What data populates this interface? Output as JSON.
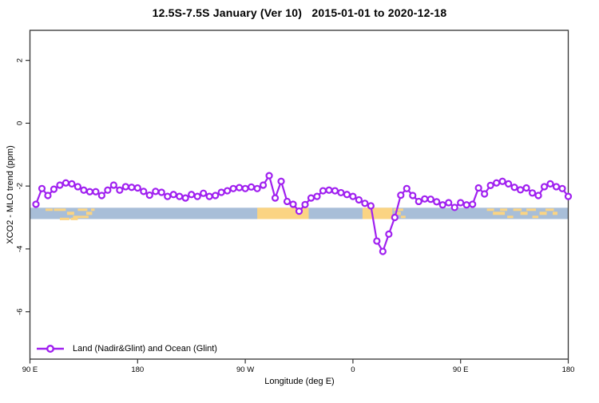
{
  "header": {
    "title": "12.5S-7.5S January (Ver 10)   2015-01-01 to 2020-12-18"
  },
  "axes": {
    "x": {
      "label": "Longitude (deg E)",
      "ticks": [
        {
          "deg": 90,
          "label": "90 E"
        },
        {
          "deg": 180,
          "label": "180"
        },
        {
          "deg": 270,
          "label": "90 W"
        },
        {
          "deg": 360,
          "label": "0"
        },
        {
          "deg": 450,
          "label": "90 E"
        },
        {
          "deg": 540,
          "label": "180"
        }
      ],
      "range_deg": [
        90,
        540
      ]
    },
    "y": {
      "label": "XCO2 - MLO trend (ppm)",
      "ticks": [
        2,
        0,
        -2,
        -4,
        -6
      ],
      "range_ppm": [
        -7.5,
        2.9
      ]
    }
  },
  "legend": {
    "label": "Land (Nadir&Glint) and Ocean (Glint)"
  },
  "colors": {
    "line": "#A020F0",
    "marker_fill": "#ffffff",
    "ocean_band": "#A8BED8",
    "land_band": "#FBD483",
    "axis": "#333333",
    "text": "#000000"
  },
  "chart_data": {
    "type": "line",
    "title": "12.5S-7.5S January (Ver 10)   2015-01-01 to 2020-12-18",
    "xlabel": "Longitude (deg E)",
    "ylabel": "XCO2 - MLO trend (ppm)",
    "series_name": "Land (Nadir&Glint) and Ocean (Glint)",
    "marker": "open-circle",
    "x_axis_wraps": "90E eastward to 180, 90W, 0, 90E, 180",
    "xlim_deg": [
      90,
      540
    ],
    "ylim_ppm": [
      -7.5,
      2.9
    ],
    "grid": false,
    "legend_position": "bottom-left",
    "x": [
      95,
      100,
      105,
      110,
      115,
      120,
      125,
      130,
      135,
      140,
      145,
      150,
      155,
      160,
      165,
      170,
      175,
      180,
      185,
      190,
      195,
      200,
      205,
      210,
      215,
      220,
      225,
      230,
      235,
      240,
      245,
      250,
      255,
      260,
      265,
      270,
      275,
      280,
      285,
      290,
      295,
      300,
      305,
      310,
      315,
      320,
      325,
      330,
      335,
      340,
      345,
      350,
      355,
      360,
      365,
      370,
      375,
      380,
      385,
      390,
      395,
      400,
      405,
      410,
      415,
      420,
      425,
      430,
      435,
      440,
      445,
      450,
      455,
      460,
      465,
      470,
      475,
      480,
      485,
      490,
      495,
      500,
      505,
      510,
      515,
      520,
      525,
      530,
      535,
      540
    ],
    "values": [
      -2.58,
      -2.08,
      -2.3,
      -2.1,
      -1.97,
      -1.9,
      -1.93,
      -2.02,
      -2.13,
      -2.18,
      -2.18,
      -2.3,
      -2.13,
      -1.97,
      -2.13,
      -2.02,
      -2.04,
      -2.06,
      -2.17,
      -2.29,
      -2.17,
      -2.2,
      -2.33,
      -2.27,
      -2.33,
      -2.38,
      -2.27,
      -2.33,
      -2.23,
      -2.33,
      -2.3,
      -2.2,
      -2.15,
      -2.08,
      -2.05,
      -2.08,
      -2.03,
      -2.08,
      -1.97,
      -1.67,
      -2.38,
      -1.85,
      -2.49,
      -2.58,
      -2.8,
      -2.59,
      -2.38,
      -2.33,
      -2.15,
      -2.13,
      -2.15,
      -2.21,
      -2.27,
      -2.33,
      -2.44,
      -2.55,
      -2.63,
      -3.75,
      -4.08,
      -3.53,
      -3.0,
      -2.29,
      -2.08,
      -2.3,
      -2.49,
      -2.41,
      -2.42,
      -2.5,
      -2.6,
      -2.53,
      -2.68,
      -2.53,
      -2.6,
      -2.58,
      -2.06,
      -2.25,
      -1.98,
      -1.9,
      -1.85,
      -1.93,
      -2.04,
      -2.12,
      -2.06,
      -2.22,
      -2.3,
      -2.02,
      -1.93,
      -2.02,
      -2.08,
      -2.33
    ],
    "map_strip": {
      "description": "ocean/land strip along latitude band",
      "y_top_ppm": -2.69,
      "y_bottom_ppm": -3.05,
      "land_segments_deg": [
        {
          "from": 280,
          "to": 323
        },
        {
          "from": 368,
          "to": 393
        }
      ],
      "land_speckles": [
        [
          103,
          6,
          0
        ],
        [
          110,
          10,
          0
        ],
        [
          121,
          6,
          1
        ],
        [
          126,
          7,
          2
        ],
        [
          130,
          8,
          0
        ],
        [
          137,
          5,
          1
        ],
        [
          133,
          6,
          2
        ],
        [
          141,
          3,
          0
        ],
        [
          115,
          8,
          3
        ],
        [
          124,
          6,
          3
        ],
        [
          394,
          8,
          0
        ],
        [
          395,
          5,
          1
        ],
        [
          400,
          4,
          2
        ],
        [
          472,
          6,
          0
        ],
        [
          477,
          10,
          1
        ],
        [
          483,
          6,
          0
        ],
        [
          489,
          5,
          2
        ],
        [
          494,
          7,
          0
        ],
        [
          500,
          6,
          1
        ],
        [
          505,
          8,
          0
        ],
        [
          510,
          5,
          2
        ],
        [
          516,
          6,
          1
        ],
        [
          521,
          7,
          0
        ],
        [
          527,
          4,
          1
        ]
      ]
    }
  }
}
